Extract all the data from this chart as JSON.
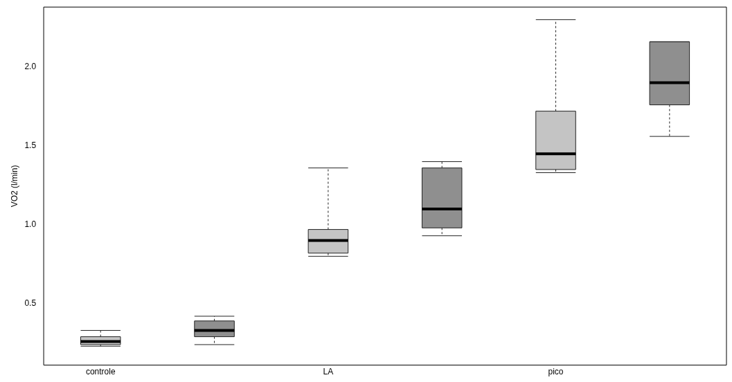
{
  "chart_data": {
    "type": "box",
    "ylabel": "VO2 (l/min)",
    "categories": [
      "controle",
      null,
      "LA",
      null,
      "pico",
      null
    ],
    "colors": [
      "#c4c4c4",
      "#8f8f8f",
      "#c4c4c4",
      "#8f8f8f",
      "#c4c4c4",
      "#8f8f8f"
    ],
    "boxes": [
      {
        "low": 0.23,
        "q1": 0.24,
        "median": 0.26,
        "q3": 0.29,
        "high": 0.33
      },
      {
        "low": 0.24,
        "q1": 0.29,
        "median": 0.33,
        "q3": 0.39,
        "high": 0.42
      },
      {
        "low": 0.8,
        "q1": 0.82,
        "median": 0.9,
        "q3": 0.97,
        "high": 1.36
      },
      {
        "low": 0.93,
        "q1": 0.98,
        "median": 1.1,
        "q3": 1.36,
        "high": 1.4
      },
      {
        "low": 1.33,
        "q1": 1.35,
        "median": 1.45,
        "q3": 1.72,
        "high": 2.3
      },
      {
        "low": 1.56,
        "q1": 1.76,
        "median": 1.9,
        "q3": 2.16,
        "high": 2.16
      }
    ],
    "ylim": [
      0.11,
      2.38
    ],
    "yticks": [
      0.5,
      {
        "value": 1,
        "label": "1.0"
      },
      1.5,
      {
        "value": 2,
        "label": "2.0"
      }
    ],
    "grid": false,
    "legend": false
  }
}
